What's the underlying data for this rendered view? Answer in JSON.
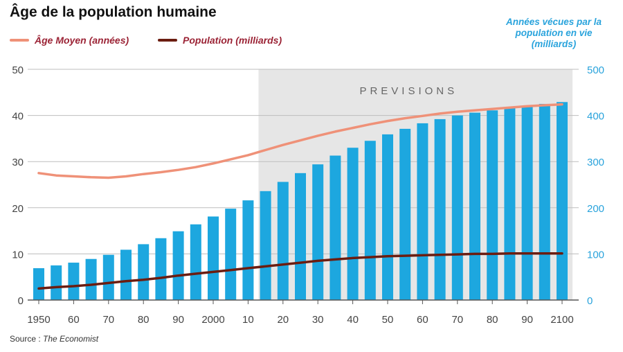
{
  "title": "Âge de la population humaine",
  "legend": {
    "age": "Âge Moyen (années)",
    "population": "Population (milliards)"
  },
  "right_axis_label": [
    "Années vécues par la",
    "population en vie",
    "(milliards)"
  ],
  "shaded_region_label": "PREVISIONS",
  "source": {
    "prefix": "Source :",
    "name": "The Economist"
  },
  "colors": {
    "bars": "#1da7df",
    "age_line": "#ef9178",
    "population_line": "#6b1d11",
    "shade": "#e6e6e6",
    "right_axis": "#29a3dc"
  },
  "chart_data": {
    "type": "bar",
    "x": [
      1950,
      1955,
      1960,
      1965,
      1970,
      1975,
      1980,
      1985,
      1990,
      1995,
      2000,
      2005,
      2010,
      2015,
      2020,
      2025,
      2030,
      2035,
      2040,
      2045,
      2050,
      2055,
      2060,
      2065,
      2070,
      2075,
      2080,
      2085,
      2090,
      2095,
      2100
    ],
    "x_tick_labels": [
      "1950",
      "60",
      "70",
      "80",
      "90",
      "2000",
      "10",
      "20",
      "30",
      "40",
      "50",
      "60",
      "70",
      "80",
      "90",
      "2100"
    ],
    "series": [
      {
        "name": "Années vécues par la population en vie (milliards)",
        "type": "bar",
        "axis": "right",
        "values": [
          69,
          75,
          81,
          89,
          98,
          109,
          121,
          134,
          149,
          164,
          181,
          198,
          216,
          236,
          256,
          275,
          294,
          313,
          330,
          345,
          359,
          371,
          383,
          392,
          400,
          406,
          411,
          416,
          420,
          425,
          429
        ]
      },
      {
        "name": "Âge Moyen (années)",
        "type": "line",
        "axis": "left",
        "values": [
          27.5,
          27.0,
          26.8,
          26.6,
          26.5,
          26.8,
          27.3,
          27.7,
          28.2,
          28.8,
          29.6,
          30.5,
          31.4,
          32.5,
          33.6,
          34.6,
          35.6,
          36.5,
          37.3,
          38.1,
          38.8,
          39.4,
          39.9,
          40.4,
          40.8,
          41.1,
          41.4,
          41.7,
          42.0,
          42.2,
          42.4
        ]
      },
      {
        "name": "Population (milliards)",
        "type": "line",
        "axis": "left",
        "values": [
          2.5,
          2.8,
          3.0,
          3.3,
          3.7,
          4.1,
          4.4,
          4.8,
          5.3,
          5.7,
          6.1,
          6.5,
          6.9,
          7.3,
          7.7,
          8.1,
          8.5,
          8.8,
          9.1,
          9.3,
          9.5,
          9.6,
          9.7,
          9.8,
          9.9,
          10.0,
          10.0,
          10.1,
          10.1,
          10.1,
          10.1
        ]
      }
    ],
    "y_left": {
      "range": [
        0,
        50
      ],
      "ticks": [
        0,
        10,
        20,
        30,
        40,
        50
      ]
    },
    "y_right": {
      "range": [
        0,
        500
      ],
      "ticks": [
        0,
        100,
        200,
        300,
        400,
        500
      ]
    },
    "forecast_range": [
      2013,
      2103
    ],
    "grid": true
  }
}
